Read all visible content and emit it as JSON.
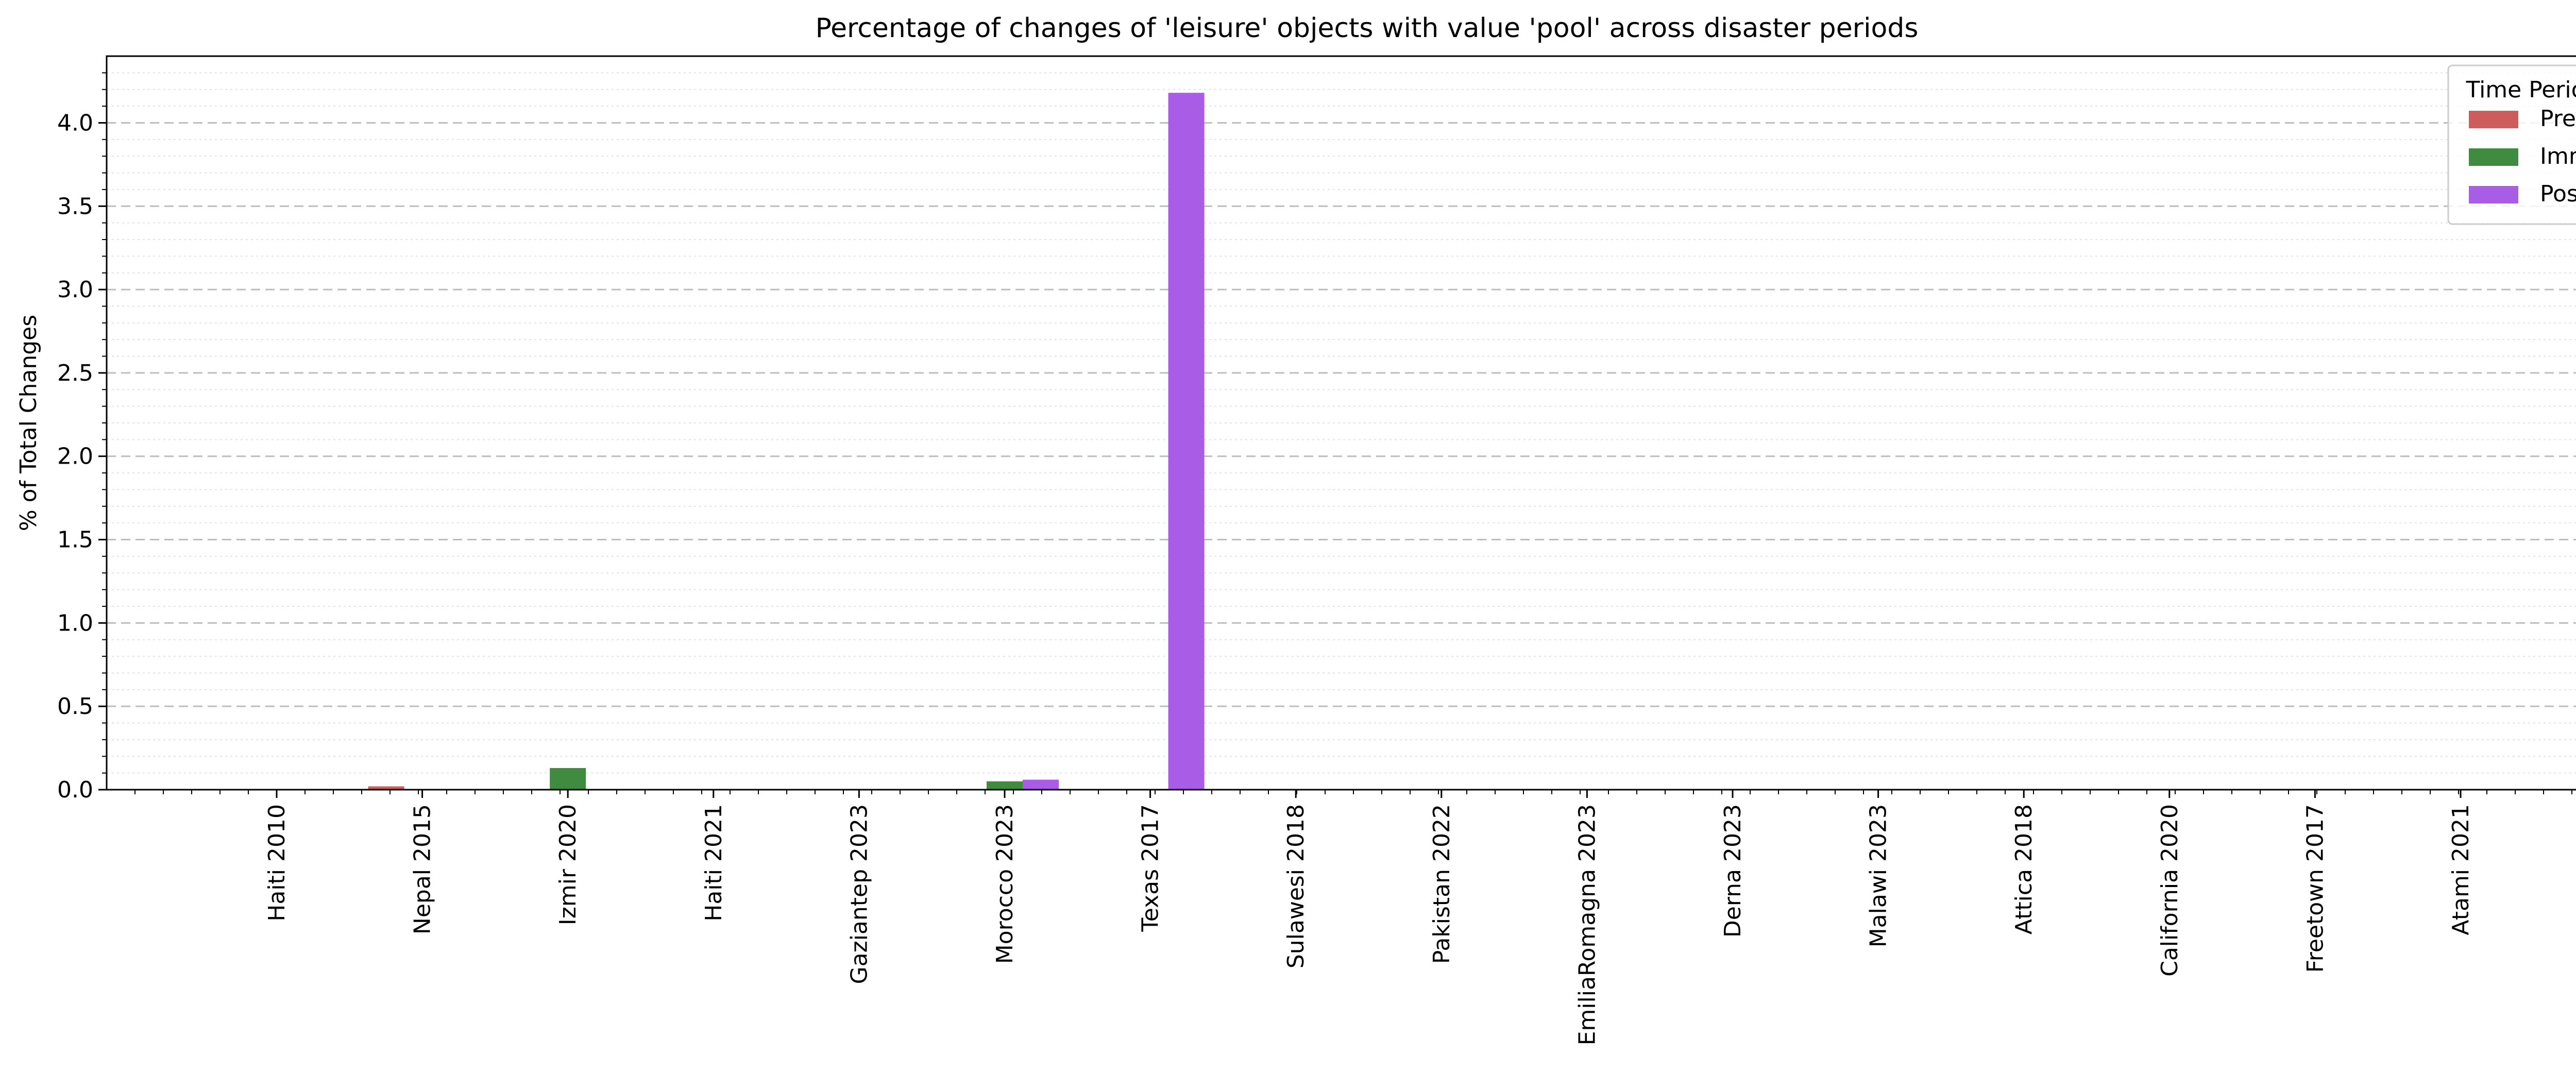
{
  "chart_data": {
    "type": "bar",
    "title": "Percentage of changes of 'leisure' objects with value 'pool' across disaster periods",
    "xlabel": "",
    "ylabel": "% of Total Changes",
    "ylim": [
      0,
      4.4
    ],
    "yticks": [
      "0.0",
      "0.5",
      "1.0",
      "1.5",
      "2.0",
      "2.5",
      "3.0",
      "3.5",
      "4.0"
    ],
    "grid": "horizontal",
    "legend": {
      "title": "Time Period",
      "placement": "top-right"
    },
    "categories": [
      "Haiti 2010",
      "Nepal 2015",
      "Izmir 2020",
      "Haiti 2021",
      "Gaziantep 2023",
      "Morocco 2023",
      "Texas 2017",
      "Sulawesi 2018",
      "Pakistan 2022",
      "EmiliaRomagna 2023",
      "Derna 2023",
      "Malawi 2023",
      "Attica 2018",
      "California 2020",
      "Freetown 2017",
      "Atami 2021"
    ],
    "series": [
      {
        "name": "Pre",
        "color": "#cd5c5c",
        "values": [
          0,
          0.02,
          0,
          0,
          0,
          0,
          0,
          0,
          0,
          0,
          0,
          0,
          0,
          0,
          0,
          0
        ]
      },
      {
        "name": "Imm",
        "color": "#3f8b3f",
        "values": [
          0,
          0,
          0.13,
          0,
          0,
          0.05,
          0,
          0,
          0,
          0,
          0,
          0,
          0,
          0,
          0,
          0
        ]
      },
      {
        "name": "Post",
        "color": "#a95ce6",
        "values": [
          0,
          0,
          0,
          0,
          0,
          0.06,
          4.18,
          0,
          0,
          0,
          0,
          0,
          0,
          0,
          0,
          0
        ]
      }
    ]
  }
}
